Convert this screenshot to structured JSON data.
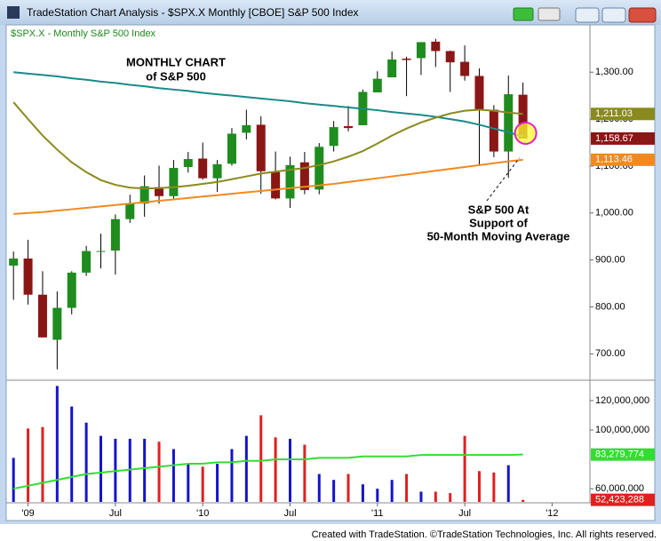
{
  "window_title": "TradeStation Chart Analysis - $SPX.X Monthly [CBOE] S&P 500 Index",
  "footer": "Created with TradeStation. ©TradeStation Technologies, Inc. All rights reserved.",
  "chart_data": [
    {
      "type": "candlestick",
      "legend_text": "$SPX.X - Monthly  S&P 500 Index",
      "annotations": [
        {
          "lines": [
            "MONTHLY CHART",
            "of S&P 500"
          ]
        },
        {
          "lines": [
            "S&P 500 At",
            "Support of",
            "50-Month Moving Average"
          ]
        }
      ],
      "up_color": "#1e8c1e",
      "down_color": "#8b1616",
      "xlim": [
        -0.5,
        39.6
      ],
      "ylim": [
        649.5,
        1397
      ],
      "yticks": [
        {
          "value": 700,
          "label": "700.00"
        },
        {
          "value": 800,
          "label": "800.00"
        },
        {
          "value": 900,
          "label": "900.00"
        },
        {
          "value": 1000,
          "label": "1,000.00"
        },
        {
          "value": 1100,
          "label": "1,100.00"
        },
        {
          "value": 1200,
          "label": "1,200.00"
        },
        {
          "value": 1300,
          "label": "1,300.00"
        }
      ],
      "open": [
        888,
        903,
        826,
        730,
        798,
        873,
        919,
        920,
        987,
        1020,
        1055,
        1036,
        1098,
        1116,
        1074,
        1105,
        1171,
        1188,
        1087,
        1031,
        1108,
        1050,
        1143,
        1185,
        1187,
        1257,
        1289,
        1329,
        1330,
        1365,
        1345,
        1322,
        1292,
        1220,
        1131,
        1252
      ],
      "high": [
        918,
        943,
        876,
        833,
        876,
        930,
        956,
        997,
        1039,
        1080,
        1101,
        1113,
        1130,
        1150,
        1113,
        1181,
        1220,
        1206,
        1131,
        1120,
        1130,
        1149,
        1196,
        1228,
        1263,
        1302,
        1344,
        1333,
        1364,
        1371,
        1346,
        1357,
        1308,
        1230,
        1293,
        1278
      ],
      "low": [
        815,
        805,
        735,
        667,
        784,
        866,
        882,
        869,
        979,
        992,
        1020,
        1029,
        1086,
        1071,
        1045,
        1101,
        1157,
        1041,
        1029,
        1011,
        1040,
        1040,
        1131,
        1174,
        1187,
        1257,
        1289,
        1249,
        1294,
        1311,
        1258,
        1282,
        1101,
        1119,
        1075,
        1158
      ],
      "close": [
        903,
        826,
        735,
        798,
        873,
        919,
        919,
        987,
        1021,
        1057,
        1036,
        1096,
        1115,
        1074,
        1104,
        1169,
        1187,
        1089,
        1031,
        1102,
        1049,
        1141,
        1183,
        1181,
        1258,
        1286,
        1327,
        1326,
        1364,
        1345,
        1321,
        1292,
        1219,
        1131,
        1253,
        1158.67
      ],
      "series": [
        {
          "color": "#1a8a8a",
          "values": [
            1300,
            1297,
            1294,
            1291,
            1287,
            1284,
            1280,
            1277,
            1273,
            1270,
            1266,
            1263,
            1260,
            1256,
            1253,
            1250,
            1247,
            1244,
            1241,
            1238,
            1234,
            1231,
            1228,
            1225,
            1222,
            1219,
            1215,
            1212,
            1209,
            1205,
            1200,
            1195,
            1188,
            1180,
            1172,
            1163
          ]
        },
        {
          "color": "#8a8a1e",
          "values": [
            1236,
            1200,
            1165,
            1135,
            1108,
            1087,
            1070,
            1060,
            1054,
            1052,
            1053,
            1055,
            1058,
            1062,
            1066,
            1072,
            1078,
            1084,
            1088,
            1092,
            1096,
            1102,
            1110,
            1120,
            1132,
            1148,
            1165,
            1180,
            1193,
            1203,
            1212,
            1218,
            1220,
            1218,
            1214,
            1211.03
          ]
        },
        {
          "color": "#f08a20",
          "values": [
            998,
            1000,
            1002,
            1005,
            1008,
            1011,
            1014,
            1017,
            1020,
            1023,
            1026,
            1029,
            1032,
            1035,
            1038,
            1041,
            1044,
            1047,
            1050,
            1053,
            1056,
            1059,
            1062,
            1066,
            1070,
            1074,
            1078,
            1082,
            1086,
            1090,
            1094,
            1098,
            1102,
            1106,
            1110,
            1113.46
          ]
        }
      ],
      "tags": [
        {
          "value": 1211.03,
          "label": "1,211.03",
          "color": "#8a8a1e"
        },
        {
          "value": 1158.67,
          "label": "1,158.67",
          "color": "#8b1616"
        },
        {
          "value": 1113.46,
          "label": "1,113.46",
          "color": "#f08a20"
        }
      ]
    },
    {
      "type": "bar",
      "up_color": "#1414c8",
      "down_color": "#e02020",
      "xlim": [
        -0.5,
        39.6
      ],
      "ylim": [
        51000000,
        132700000
      ],
      "yticks": [
        {
          "value": 60000000,
          "label": "60,000,000"
        },
        {
          "value": 100000000,
          "label": "100,000,000"
        },
        {
          "value": 120000000,
          "label": "120,000,000"
        }
      ],
      "xticks": [
        {
          "value": 1,
          "label": "'09"
        },
        {
          "value": 7,
          "label": "Jul"
        },
        {
          "value": 13,
          "label": "'10"
        },
        {
          "value": 19,
          "label": "Jul"
        },
        {
          "value": 25,
          "label": "'11"
        },
        {
          "value": 31,
          "label": "Jul"
        },
        {
          "value": 37,
          "label": "'12"
        }
      ],
      "values": [
        81000000,
        101000000,
        102000000,
        130000000,
        116000000,
        105000000,
        96000000,
        94000000,
        94000000,
        94000000,
        92000000,
        87000000,
        77000000,
        75000000,
        77000000,
        87000000,
        96000000,
        110000000,
        95000000,
        94000000,
        90000000,
        70000000,
        66000000,
        70000000,
        63000000,
        60000000,
        66000000,
        70000000,
        58000000,
        58000000,
        57000000,
        96000000,
        72000000,
        71000000,
        76000000,
        52423288
      ],
      "series": [
        {
          "color": "#33dd33",
          "values": [
            60000000,
            62000000,
            64000000,
            66000000,
            68000000,
            70000000,
            71000000,
            72000000,
            73000000,
            74000000,
            75000000,
            76000000,
            77000000,
            77000000,
            78000000,
            78000000,
            79000000,
            79000000,
            80000000,
            80000000,
            80000000,
            81000000,
            81000000,
            81000000,
            82000000,
            82000000,
            82000000,
            82000000,
            83000000,
            83000000,
            83000000,
            83000000,
            83000000,
            83000000,
            83000000,
            83279774
          ]
        }
      ],
      "tags": [
        {
          "value": 83279774,
          "label": "83,279,774",
          "color": "#33dd33"
        },
        {
          "value": 52423288,
          "label": "52,423,288",
          "color": "#e02020"
        }
      ]
    }
  ]
}
